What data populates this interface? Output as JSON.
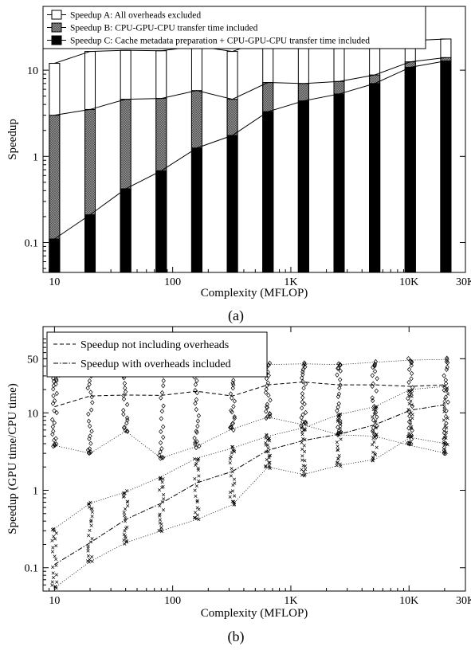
{
  "chart_data": [
    {
      "type": "bar",
      "panel": "(a)",
      "xlabel": "Complexity (MFLOP)",
      "ylabel": "Speedup",
      "x_scale": "log",
      "y_scale": "log",
      "xlim": [
        8,
        30000
      ],
      "ylim": [
        0.045,
        55
      ],
      "x_ticks": [
        {
          "value": 10,
          "label": "10"
        },
        {
          "value": 100,
          "label": "100"
        },
        {
          "value": 1000,
          "label": "1K"
        },
        {
          "value": 10000,
          "label": "10K"
        },
        {
          "value": 30000,
          "label": "30K"
        }
      ],
      "y_ticks": [
        {
          "value": 0.1,
          "label": "0.1"
        },
        {
          "value": 1,
          "label": "1"
        },
        {
          "value": 10,
          "label": "10"
        }
      ],
      "x": [
        10,
        20,
        40,
        80,
        160,
        320,
        640,
        1280,
        2560,
        5120,
        10240,
        20480
      ],
      "series": [
        {
          "name": "Speedup A: All overheads excluded",
          "style": "white",
          "values": [
            12,
            16.5,
            17,
            16.8,
            19,
            16.5,
            23,
            25,
            23,
            23,
            22,
            23
          ]
        },
        {
          "name": "Speedup B: CPU-GPU-CPU transfer time included",
          "style": "hatched",
          "values": [
            3.0,
            3.5,
            4.6,
            4.7,
            5.8,
            4.6,
            7.2,
            7.0,
            7.4,
            8.8,
            12.5,
            14
          ]
        },
        {
          "name": "Speedup C: Cache metadata preparation  + CPU-GPU-CPU transfer time included",
          "style": "black",
          "values": [
            0.11,
            0.21,
            0.42,
            0.68,
            1.25,
            1.75,
            3.3,
            4.4,
            5.3,
            7.0,
            10.8,
            12.8
          ]
        }
      ],
      "legend_position": "top-left",
      "caption": "(a)"
    },
    {
      "type": "scatter",
      "panel": "(b)",
      "xlabel": "Complexity (MFLOP)",
      "ylabel": "Speedup (GPU time/CPU time)",
      "x_scale": "log",
      "y_scale": "log",
      "xlim": [
        8,
        30000
      ],
      "ylim": [
        0.05,
        130
      ],
      "x_ticks": [
        {
          "value": 10,
          "label": "10"
        },
        {
          "value": 100,
          "label": "100"
        },
        {
          "value": 1000,
          "label": "1K"
        },
        {
          "value": 10000,
          "label": "10K"
        },
        {
          "value": 30000,
          "label": "30K"
        }
      ],
      "y_ticks": [
        {
          "value": 0.1,
          "label": "0.1"
        },
        {
          "value": 1,
          "label": "1"
        },
        {
          "value": 10,
          "label": "10"
        },
        {
          "value": 50,
          "label": "50"
        }
      ],
      "x": [
        10,
        20,
        40,
        80,
        160,
        320,
        640,
        1280,
        2560,
        5120,
        10240,
        20480
      ],
      "series": [
        {
          "name": "Speedup not including overheads",
          "line": "dashed",
          "marker": "diamond",
          "median": [
            12,
            16.5,
            17,
            16.8,
            19,
            16.5,
            23,
            25,
            23,
            23,
            22,
            23
          ],
          "upper": [
            28,
            35,
            42,
            48,
            38,
            36,
            42,
            43,
            42,
            45,
            48,
            49
          ],
          "lower": [
            3.8,
            3.0,
            5.8,
            2.6,
            3.7,
            6.2,
            8.8,
            7.0,
            5.2,
            5.0,
            3.8,
            3.0
          ]
        },
        {
          "name": "Speedup with overheads included",
          "line": "dashdot",
          "marker": "x",
          "median": [
            0.11,
            0.21,
            0.42,
            0.68,
            1.25,
            1.75,
            3.3,
            4.4,
            5.3,
            7.0,
            10.8,
            12.8
          ],
          "upper": [
            0.32,
            0.68,
            0.95,
            1.5,
            2.6,
            3.5,
            5.0,
            6.4,
            9.5,
            12,
            20,
            22
          ],
          "lower": [
            0.055,
            0.12,
            0.21,
            0.3,
            0.42,
            0.65,
            2.0,
            1.6,
            2.1,
            2.5,
            4.8,
            4.0
          ]
        }
      ],
      "legend_position": "top-left",
      "caption": "(b)"
    }
  ]
}
